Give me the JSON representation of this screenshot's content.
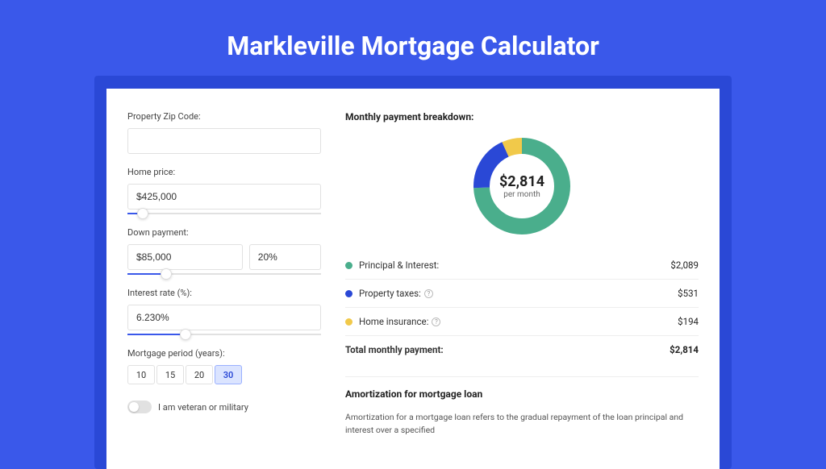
{
  "page_title": "Markleville Mortgage Calculator",
  "colors": {
    "page_bg": "#3a58ea",
    "card_wrap_bg": "#2a48d6",
    "card_bg": "#ffffff",
    "accent": "#3a58ea",
    "principal": "#4aae8c",
    "taxes": "#2a48d6",
    "insurance": "#f1c94a",
    "track": "#e1e1e1",
    "border": "#e1e1e1"
  },
  "fields": {
    "zip": {
      "label": "Property Zip Code:",
      "value": ""
    },
    "price": {
      "label": "Home price:",
      "value": "$425,000",
      "slider_pct": 8
    },
    "down": {
      "label": "Down payment:",
      "value": "$85,000",
      "pct_value": "20%",
      "slider_pct": 20
    },
    "rate": {
      "label": "Interest rate (%):",
      "value": "6.230%",
      "slider_pct": 30
    },
    "period": {
      "label": "Mortgage period (years):",
      "options": [
        "10",
        "15",
        "20",
        "30"
      ],
      "selected": "30"
    },
    "veteran": {
      "label": "I am veteran or military",
      "checked": false
    }
  },
  "breakdown": {
    "title": "Monthly payment breakdown:",
    "donut": {
      "amount": "$2,814",
      "sub": "per month",
      "slices": [
        {
          "key": "principal",
          "pct": 74.25,
          "color": "#4aae8c"
        },
        {
          "key": "taxes",
          "pct": 18.87,
          "color": "#2a48d6"
        },
        {
          "key": "insurance",
          "pct": 6.88,
          "color": "#f1c94a"
        }
      ],
      "stroke_width": 20
    },
    "rows": [
      {
        "label": "Principal & Interest:",
        "value": "$2,089",
        "color": "#4aae8c",
        "info": false
      },
      {
        "label": "Property taxes:",
        "value": "$531",
        "color": "#2a48d6",
        "info": true
      },
      {
        "label": "Home insurance:",
        "value": "$194",
        "color": "#f1c94a",
        "info": true
      }
    ],
    "total": {
      "label": "Total monthly payment:",
      "value": "$2,814"
    }
  },
  "amortization": {
    "title": "Amortization for mortgage loan",
    "text": "Amortization for a mortgage loan refers to the gradual repayment of the loan principal and interest over a specified"
  }
}
